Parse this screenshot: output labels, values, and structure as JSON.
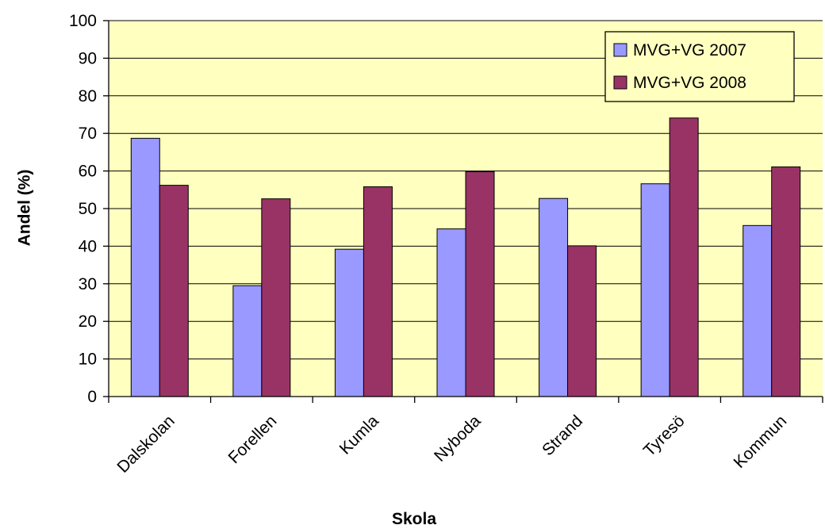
{
  "chart_data": {
    "type": "bar",
    "categories": [
      "Dalskolan",
      "Forellen",
      "Kumla",
      "Nyboda",
      "Strand",
      "Tyresö",
      "Kommun"
    ],
    "series": [
      {
        "name": "MVG+VG 2007",
        "values": [
          68.7,
          29.5,
          39.2,
          44.6,
          52.7,
          56.6,
          45.5
        ],
        "color": "#9999ff"
      },
      {
        "name": "MVG+VG 2008",
        "values": [
          56.2,
          52.6,
          55.8,
          59.8,
          40.1,
          74.1,
          61.1
        ],
        "color": "#993366"
      }
    ],
    "xlabel": "Skola",
    "ylabel": "Andel (%)",
    "ylim": [
      0,
      100
    ],
    "yticks": [
      0,
      10,
      20,
      30,
      40,
      50,
      60,
      70,
      80,
      90,
      100
    ],
    "grid": true,
    "legend_position": "top-right",
    "plot_background": "#ffffc0"
  }
}
